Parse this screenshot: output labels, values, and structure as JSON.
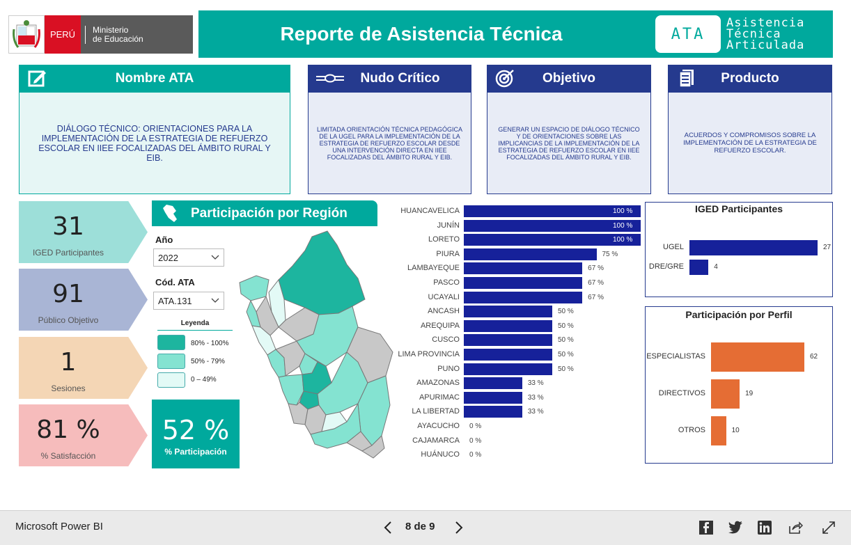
{
  "header": {
    "logo_country": "PERÚ",
    "logo_ministry_line1": "Ministerio",
    "logo_ministry_line2": "de Educación",
    "title": "Reporte de Asistencia Técnica",
    "ata_badge": "ATA",
    "ata_line1": "Asistencia",
    "ata_line2": "Técnica",
    "ata_line3": "Articulada"
  },
  "cards": {
    "nombre": {
      "title": "Nombre ATA",
      "text": "DIÁLOGO TÉCNICO: ORIENTACIONES PARA LA IMPLEMENTACIÓN DE LA ESTRATEGIA DE REFUERZO ESCOLAR EN IIEE FOCALIZADAS DEL ÁMBITO RURAL Y EIB."
    },
    "nudo": {
      "title": "Nudo Crítico",
      "text": "LIMITADA ORIENTACIÓN TÉCNICA PEDAGÓGICA DE LA UGEL PARA LA IMPLEMENTACIÓN DE LA ESTRATEGIA DE REFUERZO ESCOLAR DESDE UNA INTERVENCIÓN DIRECTA EN IIEE FOCALIZADAS DEL ÁMBITO RURAL  Y EIB."
    },
    "objetivo": {
      "title": "Objetivo",
      "text": "GENERAR UN ESPACIO DE DIÁLOGO TÉCNICO Y DE ORIENTACIONES SOBRE LAS IMPLICANCIAS DE LA IMPLEMENTACIÓN DE LA ESTRATEGIA DE REFUERZO ESCOLAR EN IIEE FOCALIZADAS DEL ÁMBITO RURAL Y EIB."
    },
    "producto": {
      "title": "Producto",
      "text": "ACUERDOS Y COMPROMISOS SOBRE LA IMPLEMENTACIÓN DE LA ESTRATEGIA DE REFUERZO ESCOLAR."
    }
  },
  "kpis": {
    "iged": {
      "value": "31",
      "label": "IGED Participantes"
    },
    "publico": {
      "value": "91",
      "label": "Público Objetivo"
    },
    "sesiones": {
      "value": "1",
      "label": "Sesiones"
    },
    "satisfaccion": {
      "value": "81 %",
      "label": "% Satisfacción"
    }
  },
  "region": {
    "title": "Participación por Región",
    "year_label": "Año",
    "year_value": "2022",
    "code_label": "Cód. ATA",
    "code_value": "ATA.131",
    "legend_title": "Leyenda",
    "legend": [
      {
        "label": "80% - 100%",
        "color": "#1db59f"
      },
      {
        "label": "50% - 79%",
        "color": "#84e3d1"
      },
      {
        "label": "0 – 49%",
        "color": "#e3faf6"
      }
    ],
    "participation_value": "52 %",
    "participation_label": "% Participación"
  },
  "chart_data": [
    {
      "type": "bar",
      "orientation": "horizontal",
      "categories": [
        "HUANCAVELICA",
        "JUNÍN",
        "LORETO",
        "PIURA",
        "LAMBAYEQUE",
        "PASCO",
        "UCAYALI",
        "ANCASH",
        "AREQUIPA",
        "CUSCO",
        "LIMA PROVINCIA",
        "PUNO",
        "AMAZONAS",
        "APURIMAC",
        "LA LIBERTAD",
        "AYACUCHO",
        "CAJAMARCA",
        "HUÁNUCO"
      ],
      "values": [
        100,
        100,
        100,
        75,
        67,
        67,
        67,
        50,
        50,
        50,
        50,
        50,
        33,
        33,
        33,
        0,
        0,
        0
      ],
      "labels": [
        "100 %",
        "100 %",
        "100 %",
        "75 %",
        "67 %",
        "67 %",
        "67 %",
        "50 %",
        "50 %",
        "50 %",
        "50 %",
        "50 %",
        "33 %",
        "33 %",
        "33 %",
        "0 %",
        "0 %",
        "0 %"
      ],
      "color": "#16219a"
    },
    {
      "type": "bar",
      "orientation": "horizontal",
      "title": "IGED Participantes",
      "categories": [
        "UGEL",
        "DRE/GRE"
      ],
      "values": [
        27,
        4
      ],
      "color": "#16219a"
    },
    {
      "type": "bar",
      "orientation": "horizontal",
      "title": "Participación por Perfil",
      "categories": [
        "ESPECIALISTAS",
        "DIRECTIVOS",
        "OTROS"
      ],
      "values": [
        62,
        19,
        10
      ],
      "color": "#e56d34"
    }
  ],
  "footer": {
    "brand": "Microsoft Power BI",
    "pager": "8 de 9"
  }
}
